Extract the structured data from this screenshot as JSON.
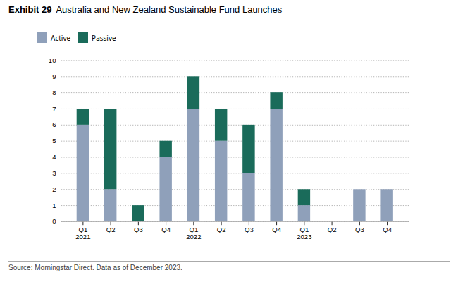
{
  "chart_data": {
    "type": "bar",
    "title": "Exhibit 29",
    "subtitle": "Australia and New Zealand Sustainable Fund Launches",
    "categories": [
      "Q1",
      "Q2",
      "Q3",
      "Q4",
      "Q1",
      "Q2",
      "Q3",
      "Q4",
      "Q1",
      "Q2",
      "Q3",
      "Q4"
    ],
    "series": [
      {
        "name": "Active",
        "color": "#8fa0ba",
        "values": [
          6,
          2,
          0,
          4,
          7,
          5,
          3,
          7,
          1,
          0,
          2,
          2
        ]
      },
      {
        "name": "Passive",
        "color": "#1a6b5a",
        "values": [
          1,
          5,
          1,
          1,
          2,
          2,
          3,
          1,
          1,
          0,
          0,
          0
        ]
      }
    ],
    "stacked": true,
    "ylim": [
      0,
      10
    ],
    "yticks": [
      0,
      1,
      2,
      3,
      4,
      5,
      6,
      7,
      8,
      9,
      10
    ],
    "grid": true,
    "legend": "top",
    "annotations": [
      {
        "text": "2021",
        "x": 0
      },
      {
        "text": "2022",
        "x": 4
      },
      {
        "text": "2023",
        "x": 8
      }
    ],
    "caption": "Source: Morningstar Direct. Data as of December 2023."
  }
}
